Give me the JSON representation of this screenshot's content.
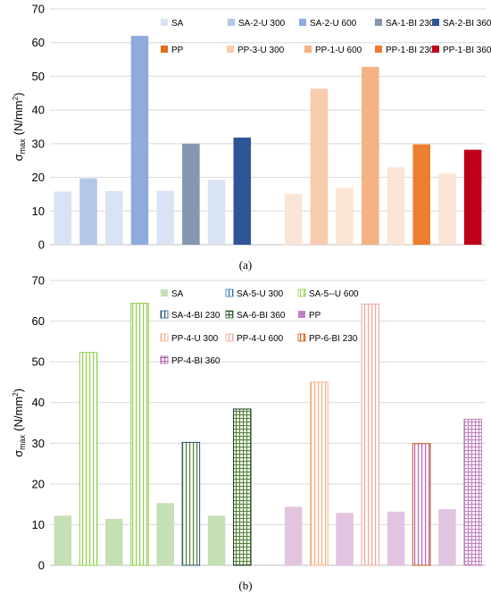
{
  "chart_data": [
    {
      "type": "bar",
      "panel_label": "(a)",
      "ylabel": "σmax (N/mm²)",
      "ylabel_main": "σ",
      "ylabel_sub": "max",
      "ylabel_unit": "(N/mm",
      "ylabel_sup": "2",
      "ylabel_close": ")",
      "ylim": [
        0,
        70
      ],
      "yticks": [
        "0",
        "10",
        "20",
        "30",
        "40",
        "50",
        "60",
        "70"
      ],
      "grid": true,
      "legend_position": "top",
      "legend": [
        {
          "label": "SA",
          "color": "#dae3f3",
          "pattern": "solid"
        },
        {
          "label": "SA-2-U 300",
          "color": "#b4c7e7",
          "pattern": "solid"
        },
        {
          "label": "SA-2-U 600",
          "color": "#8faadc",
          "pattern": "solid"
        },
        {
          "label": "SA-1-BI 230",
          "color": "#8497b0",
          "pattern": "solid"
        },
        {
          "label": "SA-2-BI 360",
          "color": "#2f5597",
          "pattern": "solid"
        },
        {
          "label": "PP",
          "color": "#e06c1c",
          "pattern": "solid"
        },
        {
          "label": "PP-3-U 300",
          "color": "#f8cbad",
          "pattern": "solid"
        },
        {
          "label": "PP-1-U 600",
          "color": "#f4b183",
          "pattern": "solid"
        },
        {
          "label": "PP-1-BI 230",
          "color": "#ed7d31",
          "pattern": "solid"
        },
        {
          "label": "PP-1-BI 360",
          "color": "#c00018",
          "pattern": "solid"
        }
      ],
      "bars": [
        {
          "series": "SA",
          "value": 15.8,
          "color": "#dae3f3",
          "pattern": "solid"
        },
        {
          "series": "SA-2-U 300",
          "value": 19.7,
          "color": "#b4c7e7",
          "pattern": "solid"
        },
        {
          "series": "SA",
          "value": 15.9,
          "color": "#dae3f3",
          "pattern": "solid"
        },
        {
          "series": "SA-2-U 600",
          "value": 62.0,
          "color": "#8faadc",
          "pattern": "solid"
        },
        {
          "series": "SA",
          "value": 16.0,
          "color": "#dae3f3",
          "pattern": "solid"
        },
        {
          "series": "SA-1-BI 230",
          "value": 30.0,
          "color": "#8497b0",
          "pattern": "solid"
        },
        {
          "series": "SA",
          "value": 19.2,
          "color": "#dae3f3",
          "pattern": "solid"
        },
        {
          "series": "SA-2-BI 360",
          "value": 31.8,
          "color": "#2f5597",
          "pattern": "solid"
        },
        null,
        {
          "series": "PP",
          "value": 15.1,
          "color": "#fbe5d6",
          "pattern": "solid"
        },
        {
          "series": "PP-3-U 300",
          "value": 46.3,
          "color": "#f8cbad",
          "pattern": "solid"
        },
        {
          "series": "PP",
          "value": 16.9,
          "color": "#fbe5d6",
          "pattern": "solid"
        },
        {
          "series": "PP-1-U 600",
          "value": 52.8,
          "color": "#f4b183",
          "pattern": "solid"
        },
        {
          "series": "PP",
          "value": 23.0,
          "color": "#fbe5d6",
          "pattern": "solid"
        },
        {
          "series": "PP-1-BI 230",
          "value": 29.8,
          "color": "#ed7d31",
          "pattern": "solid"
        },
        {
          "series": "PP",
          "value": 21.1,
          "color": "#fbe5d6",
          "pattern": "solid"
        },
        {
          "series": "PP-1-BI 360",
          "value": 28.2,
          "color": "#c00018",
          "pattern": "solid"
        }
      ]
    },
    {
      "type": "bar",
      "panel_label": "(b)",
      "ylabel": "σmax (N/mm²)",
      "ylabel_main": "σ",
      "ylabel_sub": "max",
      "ylabel_unit": "(N/mm",
      "ylabel_sup": "2",
      "ylabel_close": ")",
      "ylim": [
        0,
        70
      ],
      "yticks": [
        "0",
        "10",
        "20",
        "30",
        "40",
        "50",
        "60",
        "70"
      ],
      "grid": true,
      "legend_position": "top",
      "legend": [
        {
          "label": "SA",
          "color": "#c5e0b4",
          "pattern": "solid"
        },
        {
          "label": "SA-5-U 300",
          "color": "#2e75b6",
          "pattern": "vlines"
        },
        {
          "label": "SA-5--U 600",
          "color": "#92d050",
          "pattern": "vlines"
        },
        {
          "label": "SA-4-BI 230",
          "color": "#1f4e79",
          "pattern": "vlines"
        },
        {
          "label": "SA-6-BI 360",
          "color": "#2e5e2e",
          "pattern": "grid"
        },
        {
          "label": "PP",
          "color": "#c080c0",
          "pattern": "solid"
        },
        {
          "label": "PP-4-U 300",
          "color": "#f4b183",
          "pattern": "vlines"
        },
        {
          "label": "PP-4-U 600",
          "color": "#f0a8a0",
          "pattern": "vlines"
        },
        {
          "label": "PP-6-BI 230",
          "color": "#c55a11",
          "pattern": "vlines"
        },
        {
          "label": "PP-4-BI 360",
          "color": "#b060b0",
          "pattern": "grid"
        }
      ],
      "bars": [
        {
          "series": "SA",
          "value": 12.2,
          "color": "#c5e0b4",
          "pattern": "solid"
        },
        {
          "series": "SA-5-U 300",
          "value": 52.3,
          "color": "#92d050",
          "pattern": "vlines"
        },
        {
          "series": "SA",
          "value": 11.4,
          "color": "#c5e0b4",
          "pattern": "solid"
        },
        {
          "series": "SA-5--U 600",
          "value": 64.4,
          "color": "#92d050",
          "pattern": "vlines"
        },
        {
          "series": "SA",
          "value": 15.3,
          "color": "#c5e0b4",
          "pattern": "solid"
        },
        {
          "series": "SA-4-BI 230",
          "value": 30.2,
          "color": "#548235",
          "pattern": "vlines",
          "border": "#1f4e79"
        },
        {
          "series": "SA",
          "value": 12.2,
          "color": "#c5e0b4",
          "pattern": "solid"
        },
        {
          "series": "SA-6-BI 360",
          "value": 38.4,
          "color": "#548235",
          "pattern": "grid",
          "border": "#1f3d1f"
        },
        null,
        {
          "series": "PP",
          "value": 14.4,
          "color": "#e2c4e0",
          "pattern": "solid"
        },
        {
          "series": "PP-4-U 300",
          "value": 45.0,
          "color": "#f4b183",
          "pattern": "vlines"
        },
        {
          "series": "PP",
          "value": 12.9,
          "color": "#e2c4e0",
          "pattern": "solid"
        },
        {
          "series": "PP-4-U 600",
          "value": 64.2,
          "color": "#f0a8a0",
          "pattern": "vlines"
        },
        {
          "series": "PP",
          "value": 13.2,
          "color": "#e2c4e0",
          "pattern": "solid"
        },
        {
          "series": "PP-6-BI 230",
          "value": 29.9,
          "color": "#c060c0",
          "pattern": "vlines",
          "border": "#c55a11"
        },
        {
          "series": "PP",
          "value": 13.8,
          "color": "#e2c4e0",
          "pattern": "solid"
        },
        {
          "series": "PP-4-BI 360",
          "value": 35.9,
          "color": "#c080c0",
          "pattern": "grid"
        }
      ]
    }
  ]
}
